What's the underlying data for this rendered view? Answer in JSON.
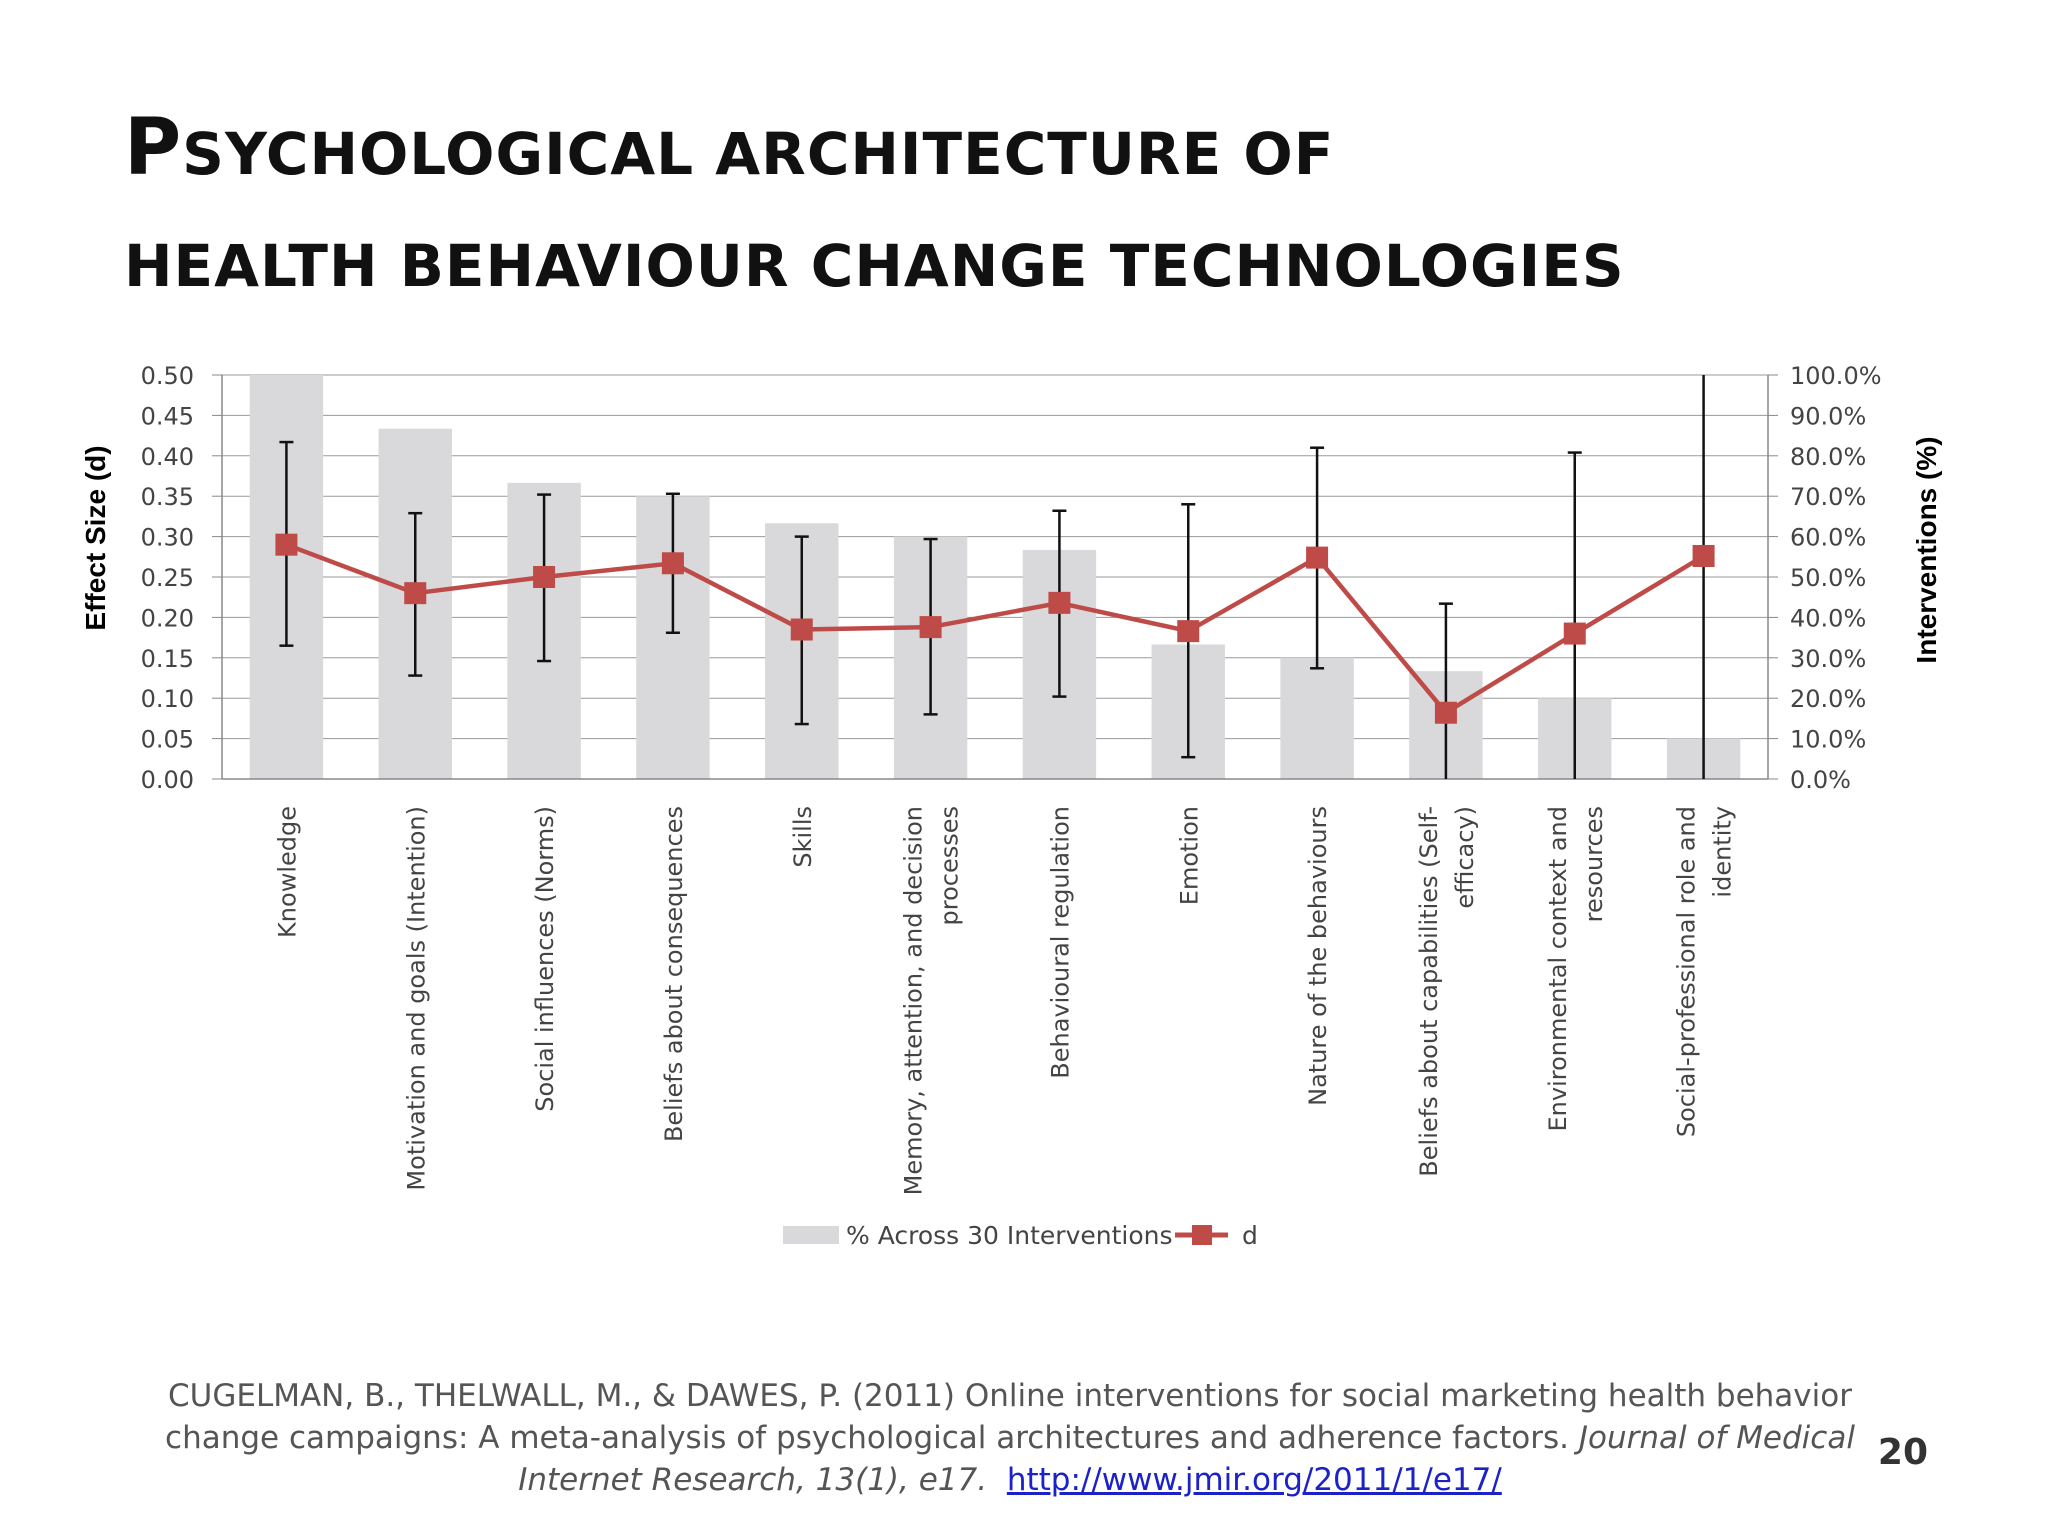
{
  "slide": {
    "title_line1_first": "P",
    "title_line1_rest": "SYCHOLOGICAL ARCHITECTURE OF",
    "title_line2": "HEALTH BEHAVIOUR CHANGE TECHNOLOGIES",
    "page_number": "20"
  },
  "citation": {
    "authors_text": "CUGELMAN, B., THELWALL, M., & DAWES, P. (2011) Online interventions for social marketing health behavior change campaigns: A meta-analysis of psychological architectures and adherence factors. ",
    "journal": "Journal of Medical Internet Research, 13(1), e17.",
    "link": "http://www.jmir.org/2011/1/e17/"
  },
  "chart_data": {
    "type": "bar",
    "ylabel": "Effect Size (d)",
    "y2label": "Interventions (%)",
    "ylim": [
      0,
      0.5
    ],
    "y2lim": [
      0,
      100
    ],
    "yticks": [
      "0.00",
      "0.05",
      "0.10",
      "0.15",
      "0.20",
      "0.25",
      "0.30",
      "0.35",
      "0.40",
      "0.45",
      "0.50"
    ],
    "y2ticks": [
      "0.0%",
      "10.0%",
      "20.0%",
      "30.0%",
      "40.0%",
      "50.0%",
      "60.0%",
      "70.0%",
      "80.0%",
      "90.0%",
      "100.0%"
    ],
    "grid": true,
    "legend_position": "bottom",
    "categories": [
      [
        "Knowledge"
      ],
      [
        "Motivation and goals (Intention)"
      ],
      [
        "Social influences (Norms)"
      ],
      [
        "Beliefs about consequences"
      ],
      [
        "Skills"
      ],
      [
        "Memory, attention, and decision",
        "processes"
      ],
      [
        "Behavioural regulation"
      ],
      [
        "Emotion"
      ],
      [
        "Nature of the behaviours"
      ],
      [
        "Beliefs about capabilities (Self-",
        "efficacy)"
      ],
      [
        "Environmental context and",
        "resources"
      ],
      [
        "Social-professional role and",
        "identity"
      ]
    ],
    "series": [
      {
        "name": "% Across 30 Interventions",
        "kind": "bar",
        "axis": "right",
        "color": "#d9d9db",
        "values": [
          100.0,
          86.7,
          73.3,
          70.0,
          63.3,
          60.0,
          56.7,
          33.3,
          30.0,
          26.7,
          20.0,
          10.0
        ]
      },
      {
        "name": "d",
        "kind": "line",
        "axis": "left",
        "color": "#be4b48",
        "values": [
          0.29,
          0.23,
          0.25,
          0.267,
          0.185,
          0.188,
          0.218,
          0.183,
          0.274,
          0.082,
          0.18,
          0.276
        ],
        "error_low": [
          0.165,
          0.128,
          0.146,
          0.181,
          0.068,
          0.08,
          0.102,
          0.027,
          0.137,
          0.0,
          0.0,
          0.0
        ],
        "error_high": [
          0.417,
          0.329,
          0.352,
          0.353,
          0.3,
          0.297,
          0.332,
          0.34,
          0.41,
          0.217,
          0.404,
          0.5
        ]
      }
    ]
  }
}
